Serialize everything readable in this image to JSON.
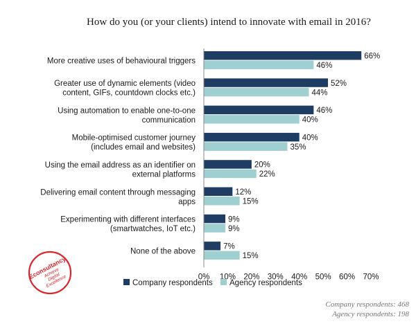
{
  "chart_data": {
    "type": "bar",
    "orientation": "horizontal",
    "title": "How do you (or your clients) intend to innovate with email in 2016?",
    "categories": [
      [
        "More creative uses of behavioural triggers"
      ],
      [
        "Greater use of dynamic elements (video",
        "content, GIFs, countdown clocks etc.)"
      ],
      [
        "Using automation to enable one-to-one",
        "communication"
      ],
      [
        "Mobile-optimised customer journey",
        "(includes email and websites)"
      ],
      [
        "Using the email address as an identifier on",
        "external platforms"
      ],
      [
        "Delivering email content through messaging",
        "apps"
      ],
      [
        "Experimenting with different interfaces",
        "(smartwatches, IoT etc.)"
      ],
      [
        "None of the above"
      ]
    ],
    "series": [
      {
        "name": "Company respondents",
        "values": [
          66,
          52,
          46,
          40,
          20,
          12,
          9,
          7
        ],
        "labels": [
          "66%",
          "52%",
          "46%",
          "40%",
          "20%",
          "12%",
          "9%",
          "7%"
        ],
        "color": "#1f3d63"
      },
      {
        "name": "Agency respondents",
        "values": [
          46,
          44,
          40,
          35,
          22,
          15,
          9,
          15
        ],
        "labels": [
          "46%",
          "44%",
          "40%",
          "35%",
          "22%",
          "15%",
          "9%",
          "15%"
        ],
        "color": "#9fcfd0"
      }
    ],
    "xlim": [
      0,
      70
    ],
    "xticks": [
      "0%",
      "10%",
      "20%",
      "30%",
      "40%",
      "50%",
      "60%",
      "70%"
    ],
    "grid": false,
    "legend_position": "bottom"
  },
  "notes": [
    "Company respondents: 468",
    "Agency respondents: 198"
  ],
  "logo": {
    "name": "Econsultancy",
    "lines": [
      "Econsultancy",
      "Achieve",
      "Digital",
      "Excellence"
    ],
    "color": "#d9262e"
  }
}
